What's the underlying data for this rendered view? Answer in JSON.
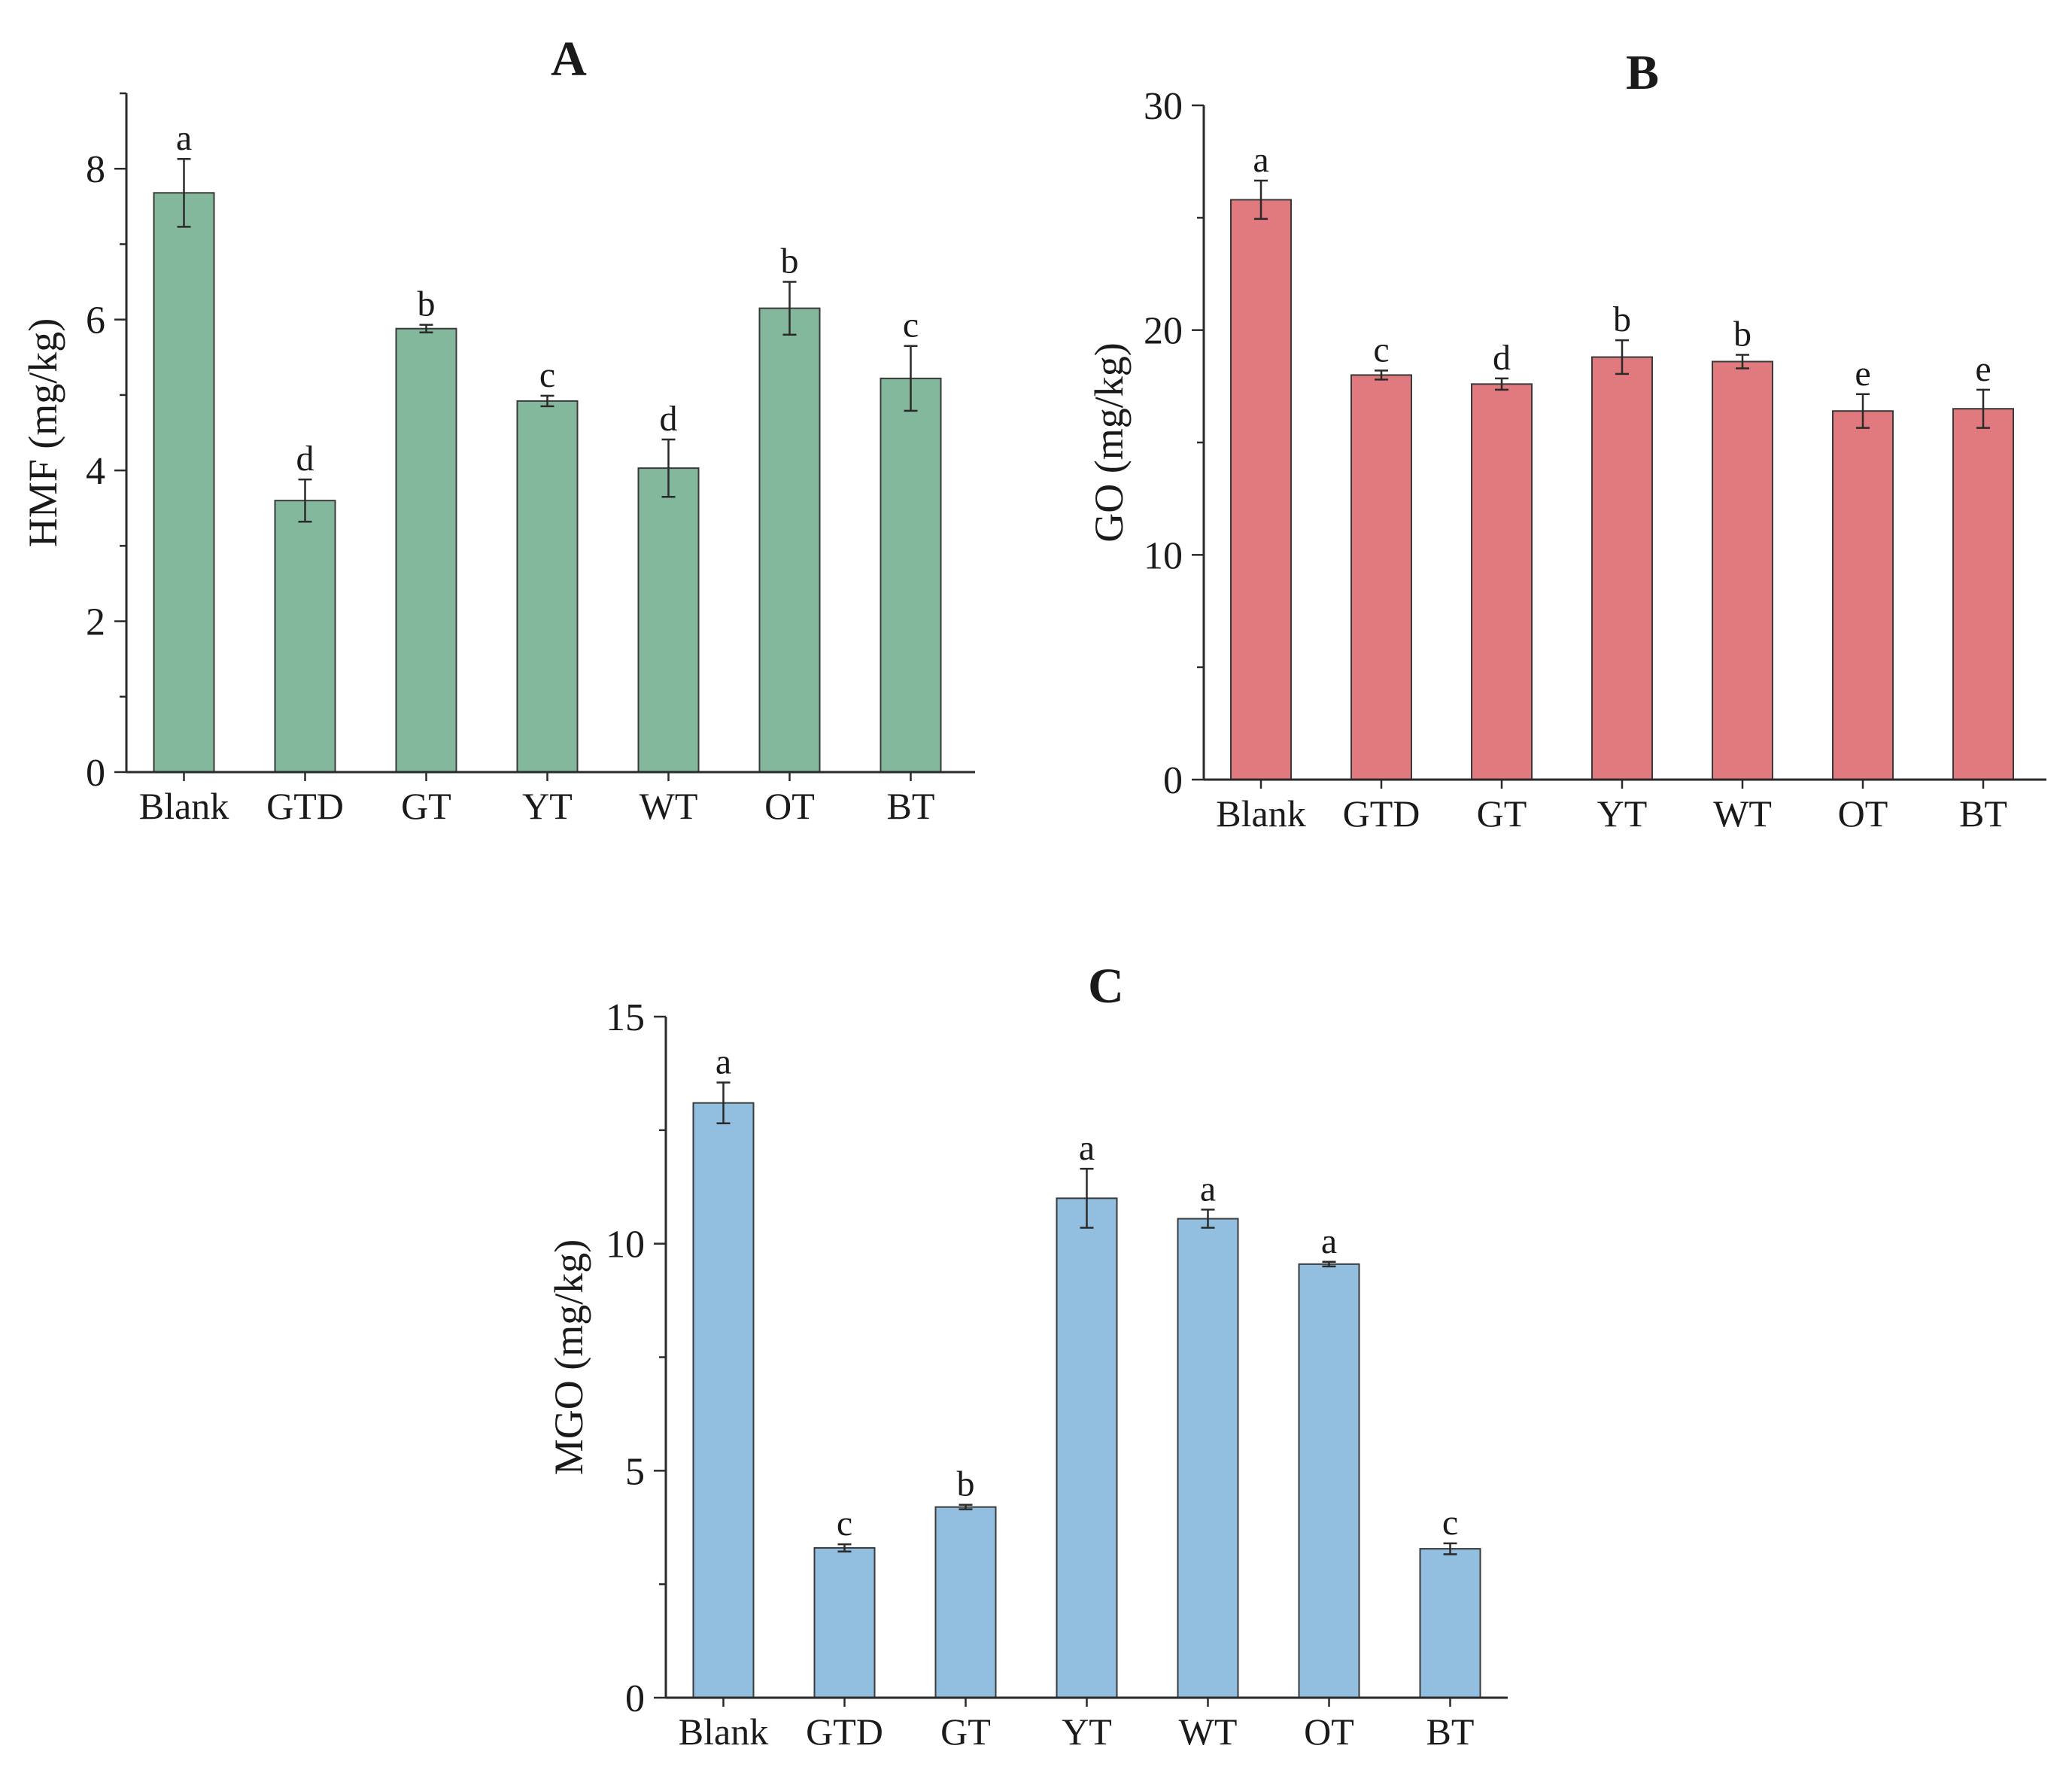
{
  "chart_data": [
    {
      "type": "bar",
      "title": "A",
      "ylabel": "HMF (mg/kg)",
      "xlabel": "",
      "categories": [
        "Blank",
        "GTD",
        "GT",
        "YT",
        "WT",
        "OT",
        "BT"
      ],
      "values": [
        7.68,
        3.6,
        5.88,
        4.92,
        4.03,
        6.15,
        5.22
      ],
      "errors": [
        0.45,
        0.28,
        0.05,
        0.07,
        0.38,
        0.35,
        0.43
      ],
      "significance": [
        "a",
        "d",
        "b",
        "c",
        "d",
        "b",
        "c"
      ],
      "ylim": [
        0,
        9
      ],
      "yticks": [
        0,
        2,
        4,
        6,
        8
      ],
      "color": "#84b89d"
    },
    {
      "type": "bar",
      "title": "B",
      "ylabel": "GO (mg/kg)",
      "xlabel": "",
      "categories": [
        "Blank",
        "GTD",
        "GT",
        "YT",
        "WT",
        "OT",
        "BT"
      ],
      "values": [
        25.8,
        18.0,
        17.6,
        18.8,
        18.6,
        16.4,
        16.5
      ],
      "errors": [
        0.85,
        0.2,
        0.25,
        0.75,
        0.3,
        0.75,
        0.85
      ],
      "significance": [
        "a",
        "c",
        "d",
        "b",
        "b",
        "e",
        "e"
      ],
      "ylim": [
        0,
        30
      ],
      "yticks": [
        0,
        10,
        20,
        30
      ],
      "color": "#e07a7e"
    },
    {
      "type": "bar",
      "title": "C",
      "ylabel": "MGO (mg/kg)",
      "xlabel": "",
      "categories": [
        "Blank",
        "GTD",
        "GT",
        "YT",
        "WT",
        "OT",
        "BT"
      ],
      "values": [
        13.1,
        3.3,
        4.2,
        11.0,
        10.55,
        9.55,
        3.28
      ],
      "errors": [
        0.45,
        0.08,
        0.05,
        0.65,
        0.2,
        0.05,
        0.12
      ],
      "significance": [
        "a",
        "c",
        "b",
        "a",
        "a",
        "a",
        "c"
      ],
      "ylim": [
        0,
        15
      ],
      "yticks": [
        0,
        5,
        10,
        15
      ],
      "color": "#92bfe0"
    }
  ]
}
